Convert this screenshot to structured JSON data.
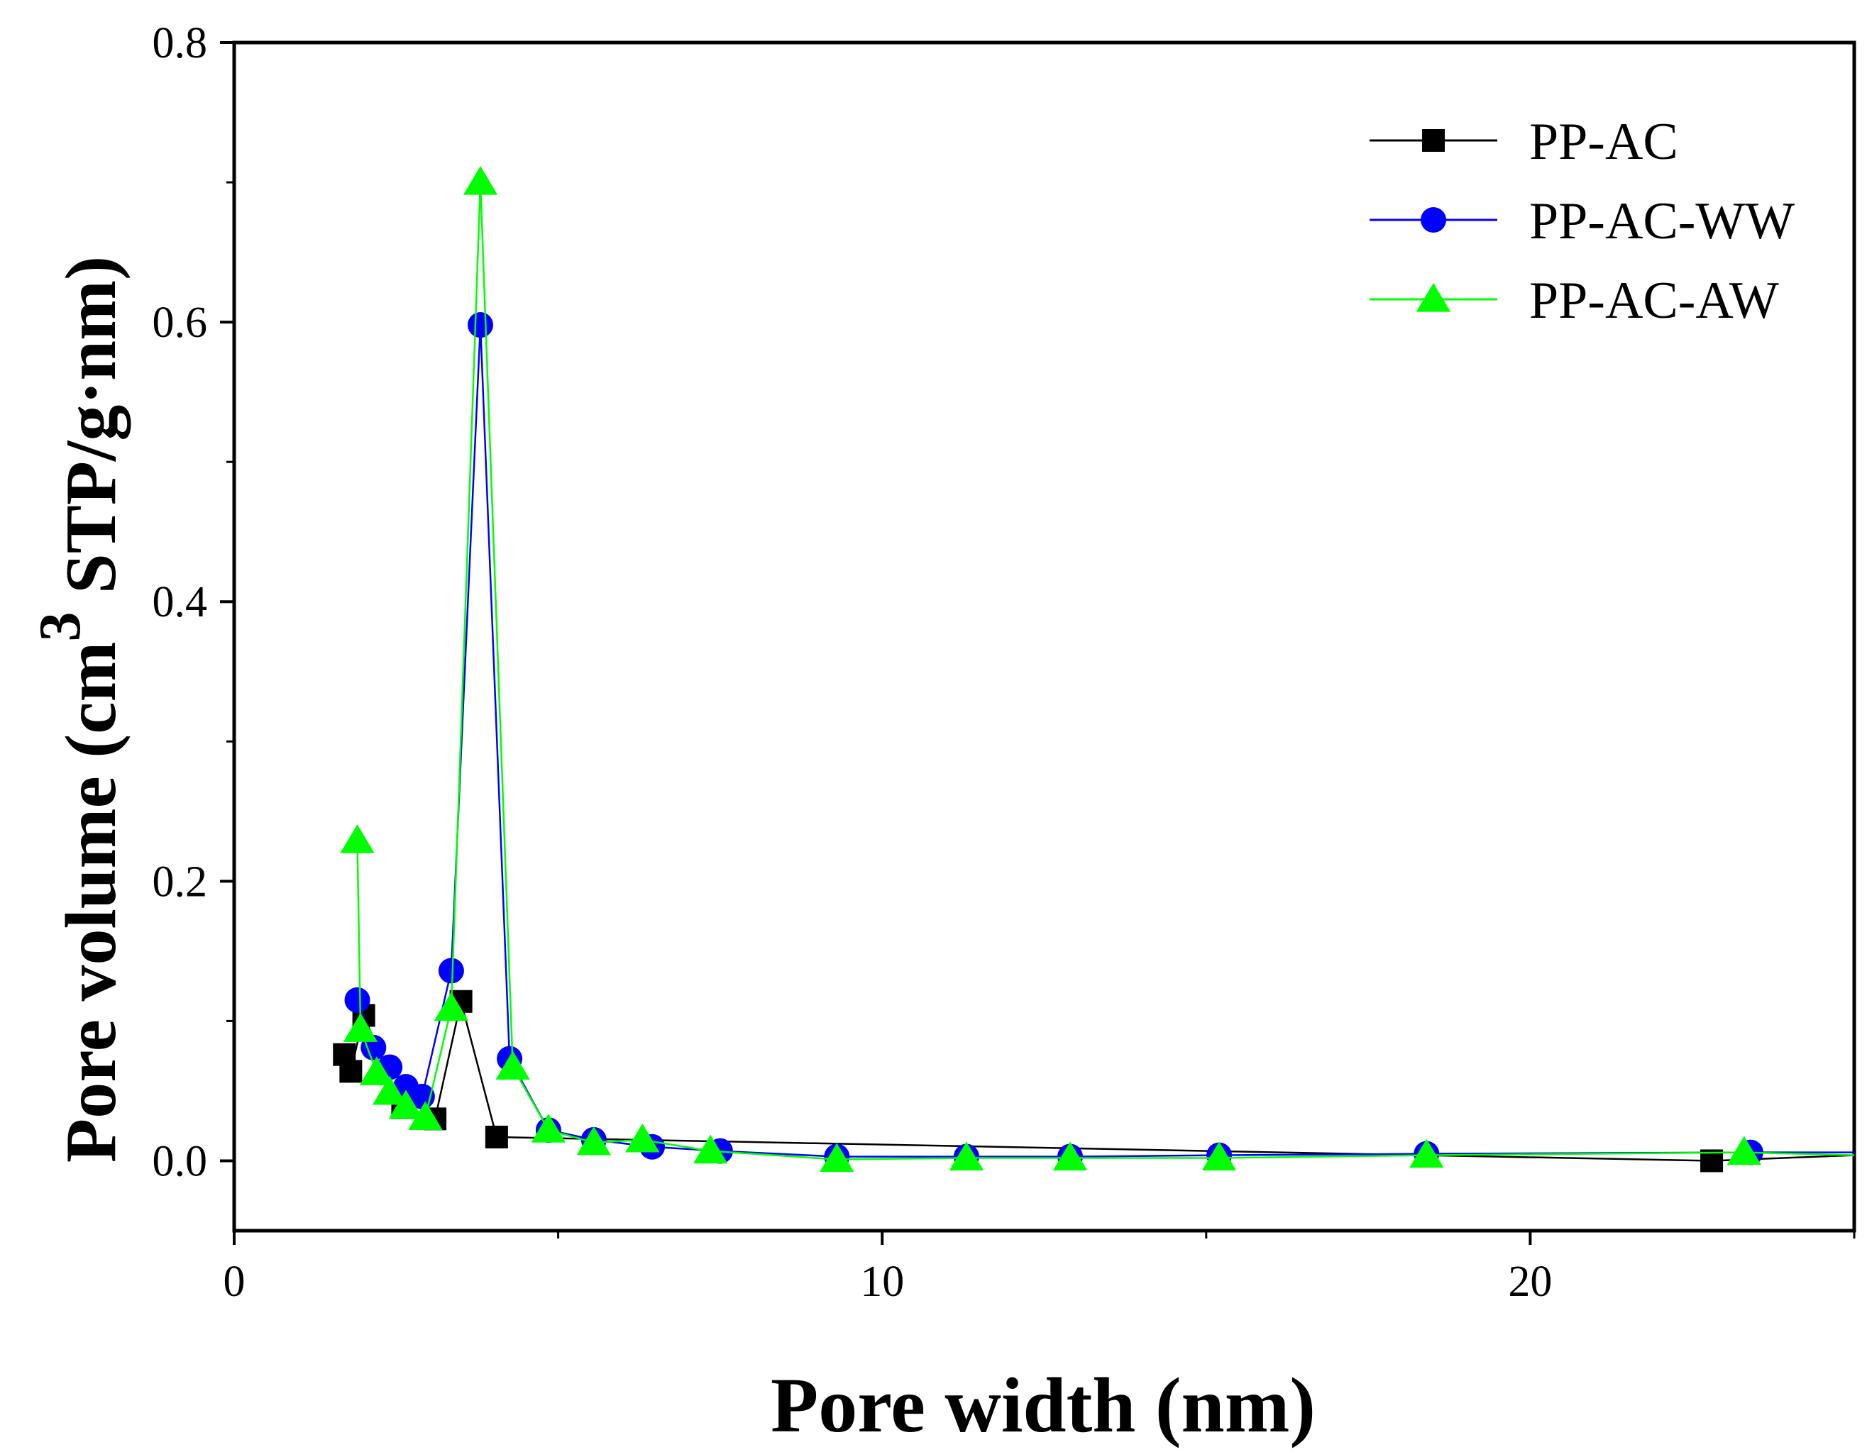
{
  "chart_data": {
    "type": "line",
    "title": "",
    "xlabel": "Pore width (nm)",
    "ylabel_main": "Pore volume (cm",
    "ylabel_superscript": "3",
    "ylabel_tail": " STP/g·nm)",
    "xlim": [
      0,
      25
    ],
    "ylim": [
      -0.05,
      0.8
    ],
    "x_ticks": [
      0,
      10,
      20
    ],
    "x_tick_labels": [
      "0",
      "10",
      "20"
    ],
    "y_ticks": [
      0.0,
      0.2,
      0.4,
      0.6,
      0.8
    ],
    "y_tick_labels": [
      "0.0",
      "0.2",
      "0.4",
      "0.6",
      "0.8"
    ],
    "grid": false,
    "legend_position": "top-right",
    "series": [
      {
        "name": "PP-AC",
        "color": "#000000",
        "marker": "square",
        "x": [
          1.7,
          1.8,
          2.0,
          2.6,
          3.1,
          3.5,
          4.05,
          22.8,
          25.0
        ],
        "y": [
          0.076,
          0.064,
          0.104,
          0.038,
          0.03,
          0.114,
          0.017,
          0.0,
          0.004
        ],
        "markers_shown": [
          true,
          true,
          true,
          true,
          true,
          true,
          true,
          true,
          false
        ]
      },
      {
        "name": "PP-AC-WW",
        "color": "#0000ff",
        "marker": "circle",
        "x": [
          1.9,
          2.15,
          2.4,
          2.65,
          2.9,
          3.35,
          3.8,
          4.25,
          4.85,
          5.55,
          6.45,
          7.5,
          9.3,
          11.3,
          12.9,
          15.2,
          18.4,
          23.4,
          25.0
        ],
        "y": [
          0.115,
          0.081,
          0.067,
          0.053,
          0.046,
          0.136,
          0.598,
          0.073,
          0.022,
          0.015,
          0.01,
          0.007,
          0.003,
          0.003,
          0.003,
          0.004,
          0.005,
          0.006,
          0.006
        ],
        "markers_shown": [
          true,
          true,
          true,
          true,
          true,
          true,
          true,
          true,
          true,
          true,
          true,
          true,
          true,
          true,
          true,
          true,
          true,
          true,
          false
        ]
      },
      {
        "name": "PP-AC-AW",
        "color": "#00ff00",
        "marker": "triangle",
        "x": [
          1.9,
          1.95,
          2.2,
          2.4,
          2.65,
          2.95,
          3.35,
          3.8,
          4.3,
          4.85,
          5.55,
          6.3,
          7.35,
          9.3,
          11.3,
          12.9,
          15.2,
          18.4,
          23.3,
          25.0
        ],
        "y": [
          0.229,
          0.094,
          0.063,
          0.049,
          0.039,
          0.031,
          0.109,
          0.7,
          0.067,
          0.022,
          0.013,
          0.015,
          0.007,
          0.001,
          0.002,
          0.002,
          0.002,
          0.004,
          0.006,
          0.004
        ],
        "markers_shown": [
          true,
          true,
          true,
          true,
          true,
          true,
          true,
          true,
          true,
          true,
          true,
          true,
          true,
          true,
          true,
          true,
          true,
          true,
          true,
          false
        ]
      }
    ]
  }
}
